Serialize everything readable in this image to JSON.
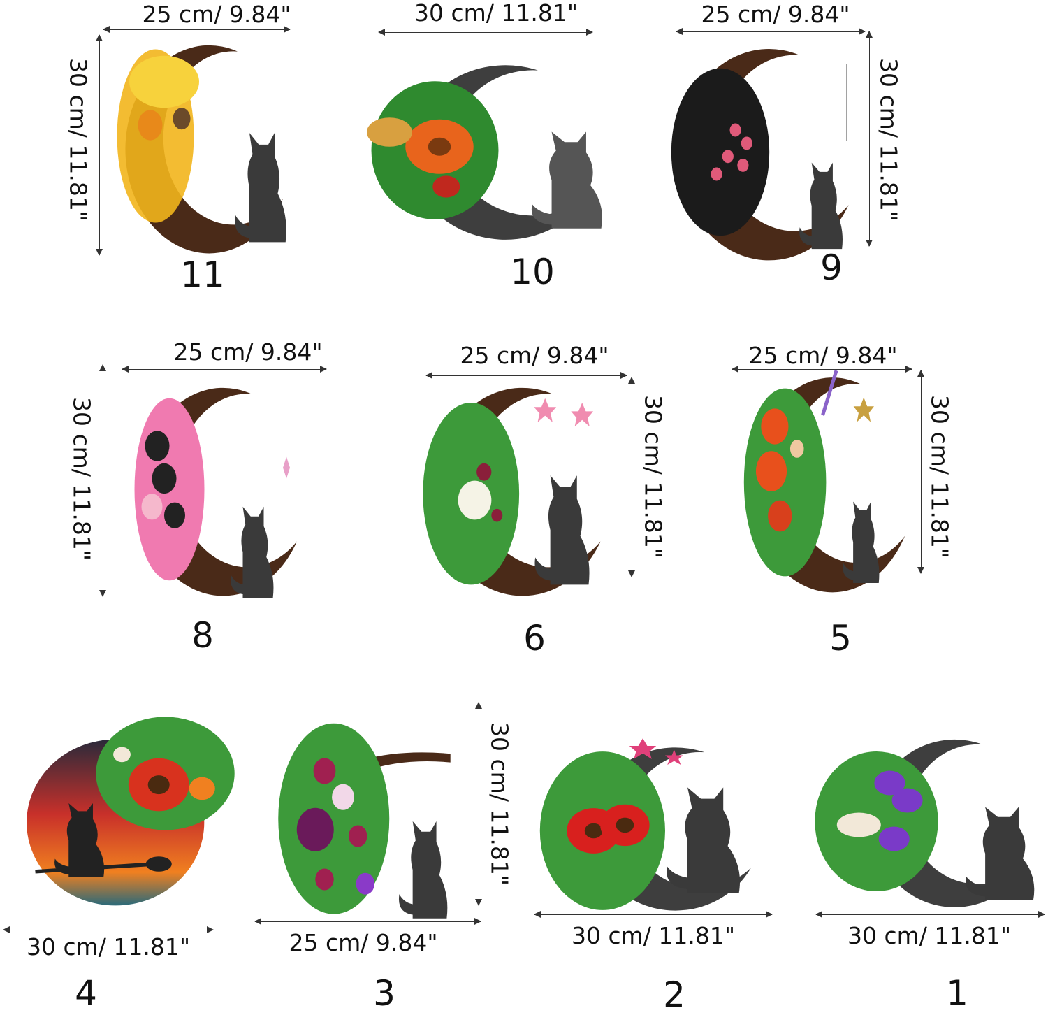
{
  "items": [
    {
      "number": "11",
      "width_label": "25 cm/ 9.84\"",
      "height_label": "30 cm/ 11.81\"",
      "style": "vine crescent with yellow wheat, pumpkin and pinecone, cat silhouette",
      "colors": [
        "#f2b51c",
        "#e8891a",
        "#f7d23c"
      ]
    },
    {
      "number": "10",
      "width_label": "30 cm/ 11.81\"",
      "style": "dark metal moon with orange sunflower and greenery, cat silhouette",
      "colors": [
        "#e8641c",
        "#2f8a2f",
        "#c0281e"
      ]
    },
    {
      "number": "9",
      "width_label": "25 cm/ 9.84\"",
      "height_label": "30 cm/ 11.81\"",
      "style": "vine crescent with black roses, pink berries and crystal, cat silhouette",
      "colors": [
        "#1b1b1b",
        "#e05a7a",
        "#444444"
      ]
    },
    {
      "number": "8",
      "width_label": "25 cm/ 9.84\"",
      "height_label": "30 cm/ 11.81\"",
      "style": "vine crescent with pink hydrangeas and black roses, crystal, cat silhouette",
      "colors": [
        "#f07ab0",
        "#222222",
        "#f5b8cc"
      ]
    },
    {
      "number": "6",
      "width_label": "25 cm/ 9.84\"",
      "height_label": "30 cm/ 11.81\"",
      "style": "vine crescent with white rose, greenery and pink stars, cat silhouette",
      "colors": [
        "#f5f3e6",
        "#3d9a3a",
        "#8a1f3a"
      ]
    },
    {
      "number": "5",
      "width_label": "25 cm/ 9.84\"",
      "height_label": "30 cm/ 11.81\"",
      "style": "vine crescent with orange flowers, lavender and gold stars, cat silhouette",
      "colors": [
        "#e8501c",
        "#8a63c9",
        "#f0c8a0"
      ]
    },
    {
      "number": "4",
      "width_label": "30 cm/ 11.81\"",
      "style": "sunset round plaque with red sunflower and witch cat on broom",
      "colors": [
        "#d8321e",
        "#f08020",
        "#2a2a3a"
      ]
    },
    {
      "number": "3",
      "width_label": "25 cm/ 9.84\"",
      "height_label": "30 cm/ 11.81\"",
      "style": "vine crescent with purple roses and greenery, cat silhouette",
      "colors": [
        "#6a1a5a",
        "#a02050",
        "#3d9a3a"
      ]
    },
    {
      "number": "2",
      "width_label": "30 cm/ 11.81\"",
      "style": "dark metal moon with red sunflowers, pink stars, cat silhouette",
      "colors": [
        "#d8201e",
        "#3d9a3a",
        "#e0407a"
      ]
    },
    {
      "number": "1",
      "width_label": "30 cm/ 11.81\"",
      "style": "dark metal moon with purple roses and white lily, cat silhouette",
      "colors": [
        "#7a3ac8",
        "#f2e8d8",
        "#3d9a3a"
      ]
    }
  ]
}
